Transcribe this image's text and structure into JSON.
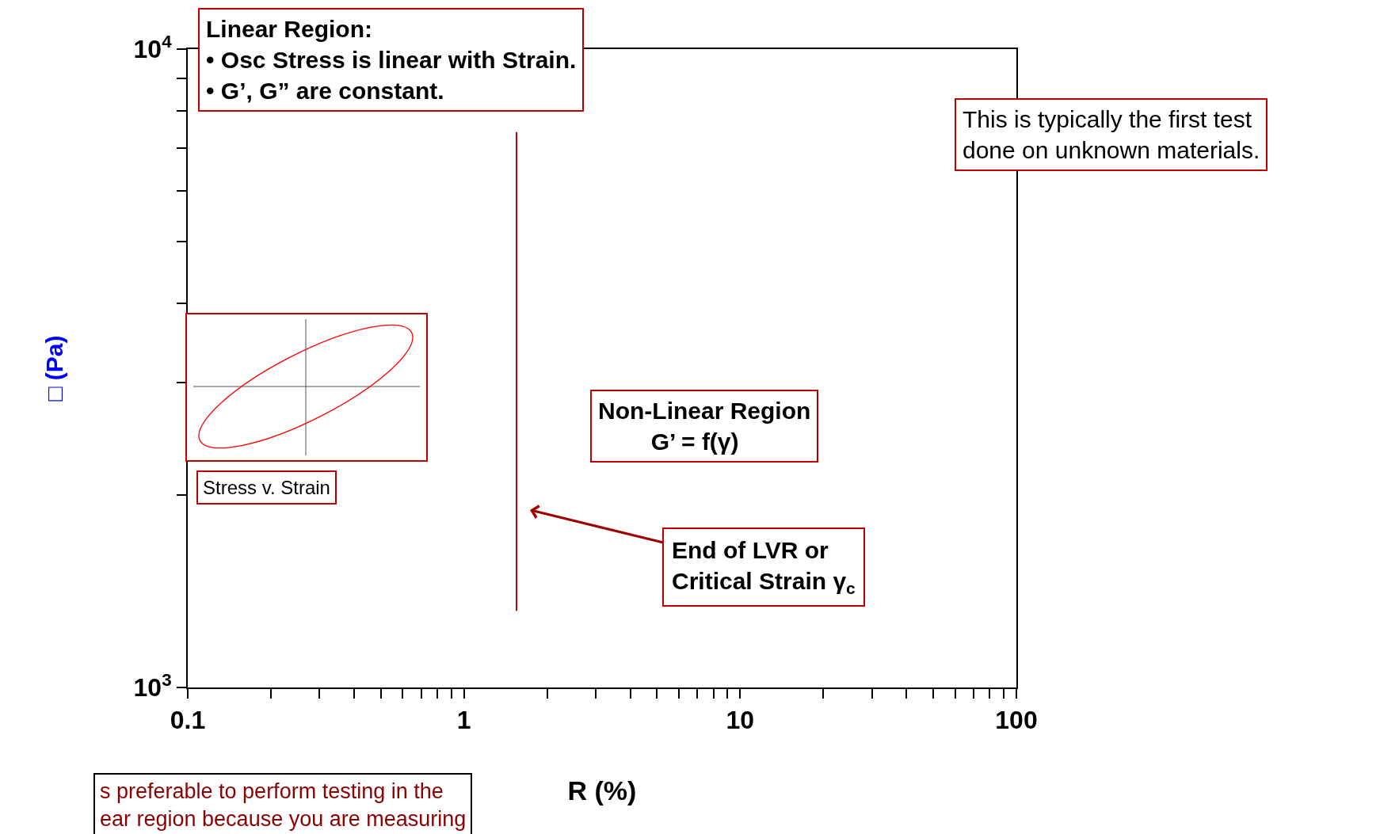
{
  "chart_data": {
    "type": "line",
    "xlabel": "R (%)",
    "ylabel": "□ (Pa)",
    "log": "xy",
    "grid": false,
    "xlim": [
      0.1,
      100
    ],
    "xticks": [
      0.1,
      {
        "value": 0.2,
        "label": null
      },
      {
        "value": 0.3,
        "label": null
      },
      {
        "value": 0.4,
        "label": null
      },
      {
        "value": 0.5,
        "label": null
      },
      {
        "value": 0.6,
        "label": null
      },
      {
        "value": 0.7,
        "label": null
      },
      {
        "value": 0.8,
        "label": null
      },
      {
        "value": 0.9,
        "label": null
      },
      1,
      {
        "value": 2,
        "label": null
      },
      {
        "value": 3,
        "label": null
      },
      {
        "value": 4,
        "label": null
      },
      {
        "value": 5,
        "label": null
      },
      {
        "value": 6,
        "label": null
      },
      {
        "value": 7,
        "label": null
      },
      {
        "value": 8,
        "label": null
      },
      {
        "value": 9,
        "label": null
      },
      10,
      {
        "value": 20,
        "label": null
      },
      {
        "value": 30,
        "label": null
      },
      {
        "value": 40,
        "label": null
      },
      {
        "value": 50,
        "label": null
      },
      {
        "value": 60,
        "label": null
      },
      {
        "value": 70,
        "label": null
      },
      {
        "value": 80,
        "label": null
      },
      {
        "value": 90,
        "label": null
      },
      100
    ],
    "ylim": [
      1000,
      10000
    ],
    "yticks": [
      {
        "value": 1000,
        "label": "10$^{3}$"
      },
      {
        "value": 2000,
        "label": null
      },
      {
        "value": 3000,
        "label": null
      },
      {
        "value": 4000,
        "label": null
      },
      {
        "value": 5000,
        "label": null
      },
      {
        "value": 6000,
        "label": null
      },
      {
        "value": 7000,
        "label": null
      },
      {
        "value": 8000,
        "label": null
      },
      {
        "value": 9000,
        "label": null
      },
      {
        "value": 10000,
        "label": "10$^{4}$"
      }
    ],
    "ref_lines": [
      {
        "axis": "x",
        "value": 1.55,
        "color": "#c00000"
      }
    ],
    "annotations": [
      "Linear Region:\n• Osc Stress is linear with Strain.\n• G’, G” are constant.",
      "This is typically the first test\ndone on unknown materials.",
      "Non-Linear Region\n        G’ = f(γ)",
      "End of LVR or\nCritical Strain γ$_{c}$",
      "Stress v. Strain",
      "s preferable to perform testing in the\near region because you are measuring"
    ]
  }
}
